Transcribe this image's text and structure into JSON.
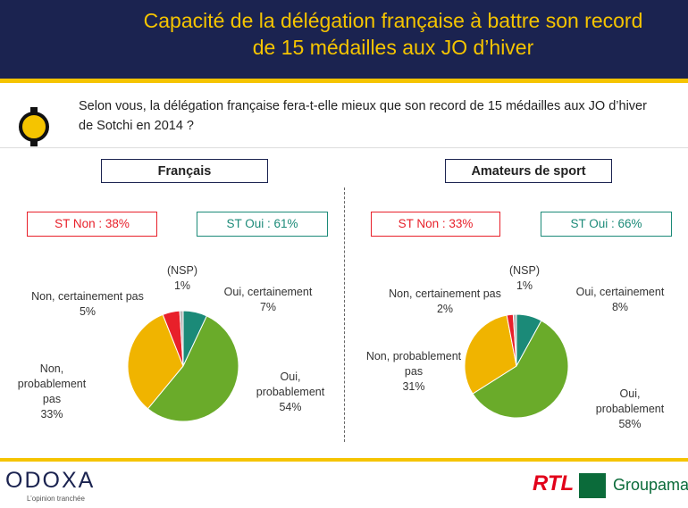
{
  "header": {
    "title_lines": [
      "Capacité de la délégation française à battre son record",
      "de 15 médailles aux JO d’hiver"
    ]
  },
  "question": "Selon vous, la délégation française fera-t-elle mieux que son record de 15 médailles aux JO d’hiver de Sotchi en 2014 ?",
  "chart_data": [
    {
      "type": "pie",
      "title": "Français",
      "annotations": [
        "ST Non : 38%",
        "ST Oui : 61%"
      ],
      "categories": [
        "Oui, certainement",
        "Oui, probablement",
        "Non, probablement pas",
        "Non, certainement pas",
        "(NSP)"
      ],
      "values": [
        7,
        54,
        33,
        5,
        1
      ],
      "value_labels": [
        "7%",
        "54%",
        "33%",
        "5%",
        "1%"
      ],
      "colors": [
        "#1b8a78",
        "#6aab2a",
        "#f0b400",
        "#e8202a",
        "#b5b5b5"
      ]
    },
    {
      "type": "pie",
      "title": "Amateurs de sport",
      "annotations": [
        "ST Non : 33%",
        "ST Oui : 66%"
      ],
      "categories": [
        "Oui, certainement",
        "Oui, probablement",
        "Non, probablement pas",
        "Non, certainement pas",
        "(NSP)"
      ],
      "values": [
        8,
        58,
        31,
        2,
        1
      ],
      "value_labels": [
        "8%",
        "58%",
        "31%",
        "2%",
        "1%"
      ],
      "colors": [
        "#1b8a78",
        "#6aab2a",
        "#f0b400",
        "#e8202a",
        "#b5b5b5"
      ]
    }
  ],
  "footer": {
    "brand": "ODOXA",
    "tagline": "L’opinion tranchée",
    "partner1": "RTL",
    "partner2": "Groupama"
  }
}
